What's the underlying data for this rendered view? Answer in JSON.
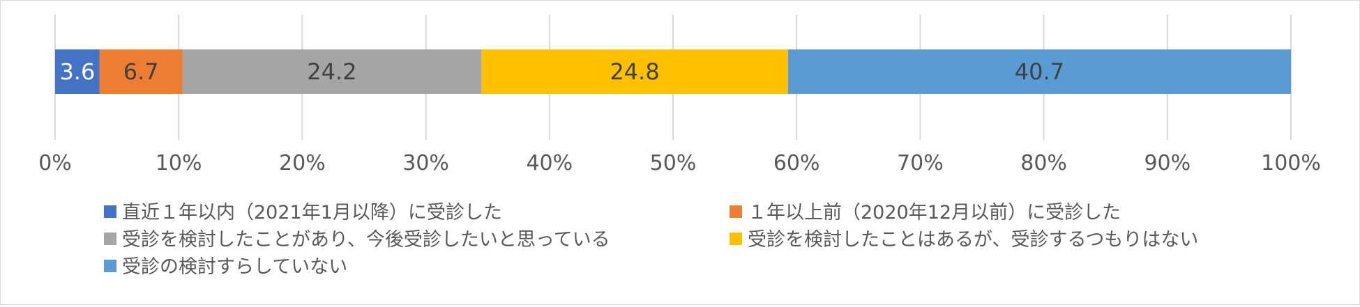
{
  "chart_data": {
    "type": "bar",
    "orientation": "horizontal",
    "stacked": true,
    "categories": [
      ""
    ],
    "series": [
      {
        "name": "直近１年以内（2021年1月以降）に受診した",
        "values": [
          3.6
        ],
        "label": "3.6",
        "color": "#4472C4",
        "label_color": "#FFFFFF"
      },
      {
        "name": "１年以上前（2020年12月以前）に受診した",
        "values": [
          6.7
        ],
        "label": "6.7",
        "color": "#ED7D31",
        "label_color": "#404040"
      },
      {
        "name": "受診を検討したことがあり、今後受診したいと思っている",
        "values": [
          24.2
        ],
        "label": "24.2",
        "color": "#A5A5A5",
        "label_color": "#404040"
      },
      {
        "name": "受診を検討したことはあるが、受診するつもりはない",
        "values": [
          24.8
        ],
        "label": "24.8",
        "color": "#FFC000",
        "label_color": "#404040"
      },
      {
        "name": "受診の検討すらしていない",
        "values": [
          40.7
        ],
        "label": "40.7",
        "color": "#5B9BD5",
        "label_color": "#404040"
      }
    ],
    "xlim": [
      0,
      100
    ],
    "x_ticks": [
      0,
      10,
      20,
      30,
      40,
      50,
      60,
      70,
      80,
      90,
      100
    ],
    "x_tick_labels": [
      "0%",
      "10%",
      "20%",
      "30%",
      "40%",
      "50%",
      "60%",
      "70%",
      "80%",
      "90%",
      "100%"
    ],
    "grid": true,
    "grid_color": "#D9D9D9",
    "legend_position": "bottom",
    "legend_columns": 2
  }
}
